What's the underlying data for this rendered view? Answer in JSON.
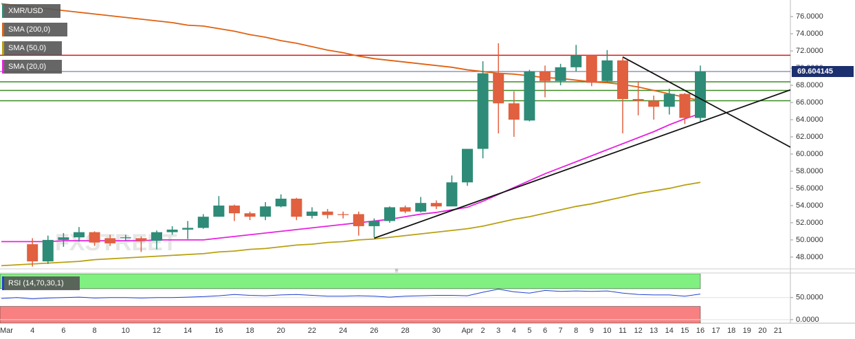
{
  "chart_data": {
    "type": "candlestick",
    "watermark": "FXSTREET",
    "categories": [
      "Mar",
      null,
      "4",
      null,
      "6",
      null,
      "8",
      null,
      "10",
      null,
      "12",
      null,
      "14",
      null,
      "16",
      null,
      "18",
      null,
      "20",
      null,
      "22",
      null,
      "24",
      null,
      "26",
      null,
      "28",
      null,
      "30",
      null,
      "Apr",
      "2",
      "3",
      "4",
      "5",
      "6",
      "7",
      "8",
      "9",
      "10",
      "11",
      "12",
      "13",
      "14",
      "15",
      "16",
      "17",
      "18",
      "19",
      "20",
      "21"
    ],
    "ylim": [
      46.63,
      77.93
    ],
    "yticks": [
      {
        "value": 48,
        "label": "48.0000"
      },
      {
        "value": 50,
        "label": "50.0000"
      },
      {
        "value": 52,
        "label": "52.0000"
      },
      {
        "value": 54,
        "label": "54.0000"
      },
      {
        "value": 56,
        "label": "56.0000"
      },
      {
        "value": 58,
        "label": "58.0000"
      },
      {
        "value": 60,
        "label": "60.0000"
      },
      {
        "value": 62,
        "label": "62.0000"
      },
      {
        "value": 64,
        "label": "64.0000"
      },
      {
        "value": 66,
        "label": "66.0000"
      },
      {
        "value": 68,
        "label": "68.0000"
      },
      {
        "value": 70,
        "label": "70.0000"
      },
      {
        "value": 72,
        "label": "72.0000"
      },
      {
        "value": 74,
        "label": "74.0000"
      },
      {
        "value": 76,
        "label": "76.0000"
      }
    ],
    "grid": true,
    "candles": {
      "name": "XMR/USD",
      "color": "#2e8b77",
      "up_color": "#2e8b77",
      "down_color": "#e0603f",
      "open": [
        null,
        null,
        49.5,
        47.5,
        50.0,
        50.3,
        50.9,
        50.2,
        50.2,
        50.2,
        49.9,
        50.9,
        51.2,
        51.4,
        52.7,
        54.0,
        53.1,
        52.7,
        53.9,
        54.8,
        52.8,
        53.3,
        53.0,
        53.0,
        51.6,
        52.2,
        53.8,
        53.3,
        54.3,
        53.9,
        56.7,
        60.6,
        69.4,
        65.9,
        63.9,
        69.6,
        68.5,
        70.1,
        71.5,
        68.5,
        70.9,
        66.4,
        66.2,
        65.5,
        67.0,
        64.2,
        null,
        null,
        null,
        null,
        null
      ],
      "high": [
        null,
        null,
        50.2,
        50.5,
        50.8,
        51.5,
        51.0,
        50.6,
        50.6,
        50.4,
        51.1,
        51.6,
        52.2,
        53.0,
        55.1,
        54.1,
        53.3,
        54.4,
        55.3,
        54.9,
        53.8,
        53.6,
        53.3,
        53.3,
        52.5,
        53.9,
        54.0,
        55.0,
        54.6,
        57.5,
        60.6,
        70.8,
        72.9,
        67.3,
        69.8,
        70.3,
        70.5,
        72.7,
        71.5,
        72.1,
        71.2,
        68.5,
        66.8,
        67.6,
        67.1,
        70.3,
        null,
        null,
        null,
        null,
        null
      ],
      "low": [
        null,
        null,
        46.9,
        47.2,
        49.2,
        49.8,
        49.3,
        49.3,
        49.9,
        48.6,
        48.9,
        50.6,
        50.1,
        51.3,
        52.7,
        52.2,
        52.3,
        52.3,
        53.8,
        52.3,
        52.5,
        52.5,
        52.5,
        50.5,
        50.3,
        52.0,
        53.1,
        53.2,
        53.6,
        53.9,
        56.3,
        59.5,
        62.4,
        62.0,
        63.8,
        66.6,
        68.0,
        69.6,
        67.9,
        68.4,
        62.4,
        64.5,
        64.0,
        64.6,
        63.5,
        63.8,
        null,
        null,
        null,
        null,
        null
      ],
      "close": [
        null,
        null,
        47.5,
        50.0,
        50.3,
        50.9,
        49.7,
        49.6,
        50.3,
        49.9,
        50.9,
        51.2,
        51.4,
        52.7,
        54.0,
        53.1,
        52.7,
        53.9,
        54.8,
        52.7,
        53.3,
        52.9,
        52.9,
        51.6,
        52.2,
        53.8,
        53.3,
        54.3,
        53.9,
        56.7,
        60.6,
        69.4,
        65.9,
        64.0,
        69.6,
        68.5,
        70.1,
        71.5,
        68.3,
        70.9,
        66.4,
        66.2,
        65.5,
        67.0,
        64.2,
        69.6,
        null,
        null,
        null,
        null,
        null
      ]
    },
    "series": [
      {
        "name": "SMA (200,0)",
        "color": "#e06010",
        "values": [
          77.5,
          77.3,
          77.1,
          76.9,
          76.7,
          76.5,
          76.3,
          76.1,
          75.9,
          75.7,
          75.5,
          75.3,
          75.0,
          74.9,
          74.6,
          74.3,
          73.9,
          73.6,
          73.2,
          72.9,
          72.5,
          72.1,
          71.8,
          71.4,
          71.1,
          70.9,
          70.7,
          70.5,
          70.3,
          70.1,
          69.8,
          69.6,
          69.4,
          69.3,
          69.1,
          68.9,
          68.8,
          68.6,
          68.4,
          68.3,
          68.1,
          67.8,
          67.4,
          67.0,
          66.6,
          66.2,
          null,
          null,
          null,
          null,
          null
        ]
      },
      {
        "name": "SMA (50,0)",
        "color": "#b8a010",
        "values": [
          47.0,
          47.1,
          47.2,
          47.3,
          47.4,
          47.5,
          47.7,
          47.8,
          47.9,
          48.0,
          48.1,
          48.2,
          48.3,
          48.4,
          48.6,
          48.7,
          48.9,
          49.0,
          49.2,
          49.4,
          49.5,
          49.7,
          49.8,
          50.0,
          50.1,
          50.3,
          50.5,
          50.7,
          50.9,
          51.1,
          51.3,
          51.6,
          52.0,
          52.4,
          52.7,
          53.1,
          53.5,
          53.9,
          54.2,
          54.6,
          55.0,
          55.4,
          55.7,
          56.0,
          56.4,
          56.7,
          null,
          null,
          null,
          null,
          null
        ]
      },
      {
        "name": "SMA (20,0)",
        "color": "#e820e0",
        "values": [
          49.8,
          49.8,
          49.8,
          49.8,
          49.9,
          49.9,
          49.9,
          49.9,
          49.9,
          49.9,
          50.0,
          50.0,
          50.0,
          50.0,
          50.2,
          50.4,
          50.6,
          50.8,
          51.0,
          51.2,
          51.4,
          51.6,
          51.8,
          52.0,
          52.2,
          52.4,
          52.7,
          53.0,
          53.2,
          53.5,
          53.8,
          54.5,
          55.3,
          56.1,
          56.9,
          57.7,
          58.4,
          59.1,
          59.8,
          60.5,
          61.2,
          61.9,
          62.6,
          63.4,
          64.1,
          64.7,
          null,
          null,
          null,
          null,
          null
        ]
      }
    ],
    "levels": [
      {
        "value": 71.5,
        "color": "#e01010"
      },
      {
        "value": 68.4,
        "color": "#3a8a20"
      },
      {
        "value": 67.4,
        "color": "#3a8a20"
      },
      {
        "value": 66.2,
        "color": "#3a8a20"
      }
    ],
    "trendlines": [
      {
        "from": [
          24,
          50.2
        ],
        "to": [
          51,
          67.6
        ],
        "color": "#111111"
      },
      {
        "from": [
          40,
          71.3
        ],
        "to": [
          51,
          60.6
        ],
        "color": "#111111"
      }
    ],
    "last_price": 69.604145,
    "last_price_color": "#1c2f6e",
    "rsi": {
      "name": "RSI (14,70,30,1)",
      "color": "#2040d0",
      "ylim": [
        -8,
        104
      ],
      "yticks": [
        {
          "value": 0,
          "label": "0.0000"
        },
        {
          "value": 50,
          "label": "50.0000"
        }
      ],
      "bands": [
        {
          "range": [
            70,
            104
          ],
          "color": "#80f080"
        },
        {
          "range": [
            -8,
            30
          ],
          "color": "#f88080"
        }
      ],
      "values": [
        48,
        50,
        47,
        49,
        50,
        51,
        49,
        50,
        50,
        49,
        50,
        50,
        51,
        52,
        54,
        57,
        55,
        54,
        56,
        57,
        55,
        53,
        53,
        54,
        53,
        51,
        53,
        54,
        55,
        55,
        54,
        62,
        69,
        63,
        60,
        66,
        64,
        65,
        64,
        65,
        60,
        57,
        56,
        56,
        53,
        58,
        null,
        null,
        null,
        null,
        null
      ]
    }
  }
}
